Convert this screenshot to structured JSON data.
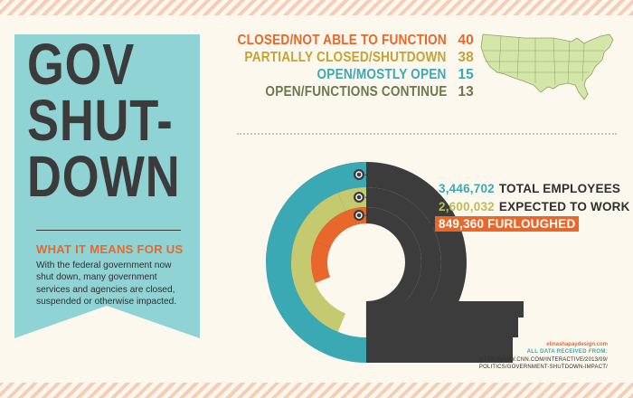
{
  "headline": {
    "line1": "GOV",
    "line2": "SHUT-",
    "line3": "DOWN"
  },
  "subhead": {
    "title": "WHAT IT MEANS FOR US",
    "body": "With the federal government now shut down, many government services and agencies are closed, suspended or otherwise impacted."
  },
  "legend": [
    {
      "label": "CLOSED/NOT ABLE TO FUNCTION",
      "value": "40",
      "color": "#e8672a"
    },
    {
      "label": "PARTIALLY CLOSED/SHUTDOWN",
      "value": "38",
      "color": "#c4a332"
    },
    {
      "label": "OPEN/MOSTLY OPEN",
      "value": "15",
      "color": "#3aa9b4"
    },
    {
      "label": "OPEN/FUNCTIONS CONTINUE",
      "value": "13",
      "color": "#6b7a4e"
    }
  ],
  "chart_data": {
    "type": "radial-bar",
    "series": [
      {
        "value": 3446702,
        "value_label": "3,446,702",
        "label": "TOTAL EMPLOYEES",
        "color": "#3aa9b4"
      },
      {
        "value": 2600032,
        "value_label": "2,600,032",
        "label": "EXPECTED TO WORK",
        "color": "#c5c96f"
      },
      {
        "value": 849360,
        "value_label": "849,360",
        "label": "FURLOUGHED",
        "color": "#e8672a"
      }
    ],
    "remainder_color": "#3d3c3c"
  },
  "colors": {
    "banner": "#8fd3d5",
    "dark": "#3b3b3b",
    "orange": "#e8672a",
    "teal": "#3aa9b4",
    "map": "#d4e6a8"
  },
  "credit": "elinashapaydesign.com",
  "source_heading": "ALL DATA RECEIVED FROM:",
  "source_url": "HTTP://WWW.CNN.COM/INTERACTIVE/2013/09/ POLITICS/GOVERNMENT-SHUTDOWN-IMPACT/"
}
